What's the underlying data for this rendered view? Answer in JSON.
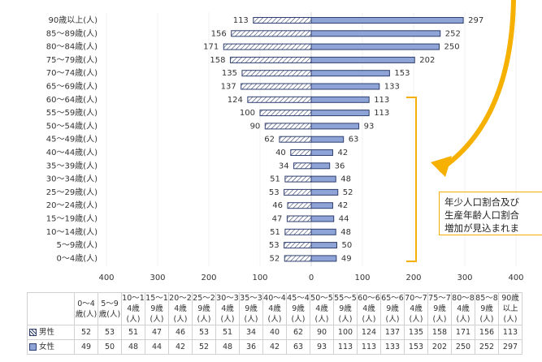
{
  "chart_data": {
    "type": "pyramid",
    "categories": [
      "90歳以上(人)",
      "85〜89歳(人)",
      "80〜84歳(人)",
      "75〜79歳(人)",
      "70〜74歳(人)",
      "65〜69歳(人)",
      "60〜64歳(人)",
      "55〜59歳(人)",
      "50〜54歳(人)",
      "45〜49歳(人)",
      "40〜44歳(人)",
      "35〜39歳(人)",
      "30〜34歳(人)",
      "25〜29歳(人)",
      "20〜24歳(人)",
      "15〜19歳(人)",
      "10〜14歳(人)",
      "5〜9歳(人)",
      "0〜4歳(人)"
    ],
    "series": [
      {
        "name": "男性",
        "color": "#ffffff",
        "hatch": true,
        "values": [
          113,
          156,
          171,
          158,
          135,
          137,
          124,
          100,
          90,
          62,
          40,
          34,
          51,
          53,
          46,
          47,
          51,
          53,
          52
        ]
      },
      {
        "name": "女性",
        "color": "#8ea3d6",
        "values": [
          297,
          252,
          250,
          202,
          153,
          133,
          113,
          113,
          93,
          63,
          42,
          36,
          48,
          52,
          42,
          44,
          48,
          50,
          49
        ]
      }
    ],
    "xlim": [
      -400,
      400
    ],
    "xticks": [
      {
        "value": -400,
        "label": "400"
      },
      {
        "value": -300,
        "label": "300"
      },
      {
        "value": -200,
        "label": "200"
      },
      {
        "value": -100,
        "label": "100"
      },
      0,
      100,
      200,
      300,
      400
    ],
    "grid": true,
    "annotation": [
      "年少人口割合及び",
      "生産年齢人口割合",
      "増加が見込まれま"
    ]
  }
}
